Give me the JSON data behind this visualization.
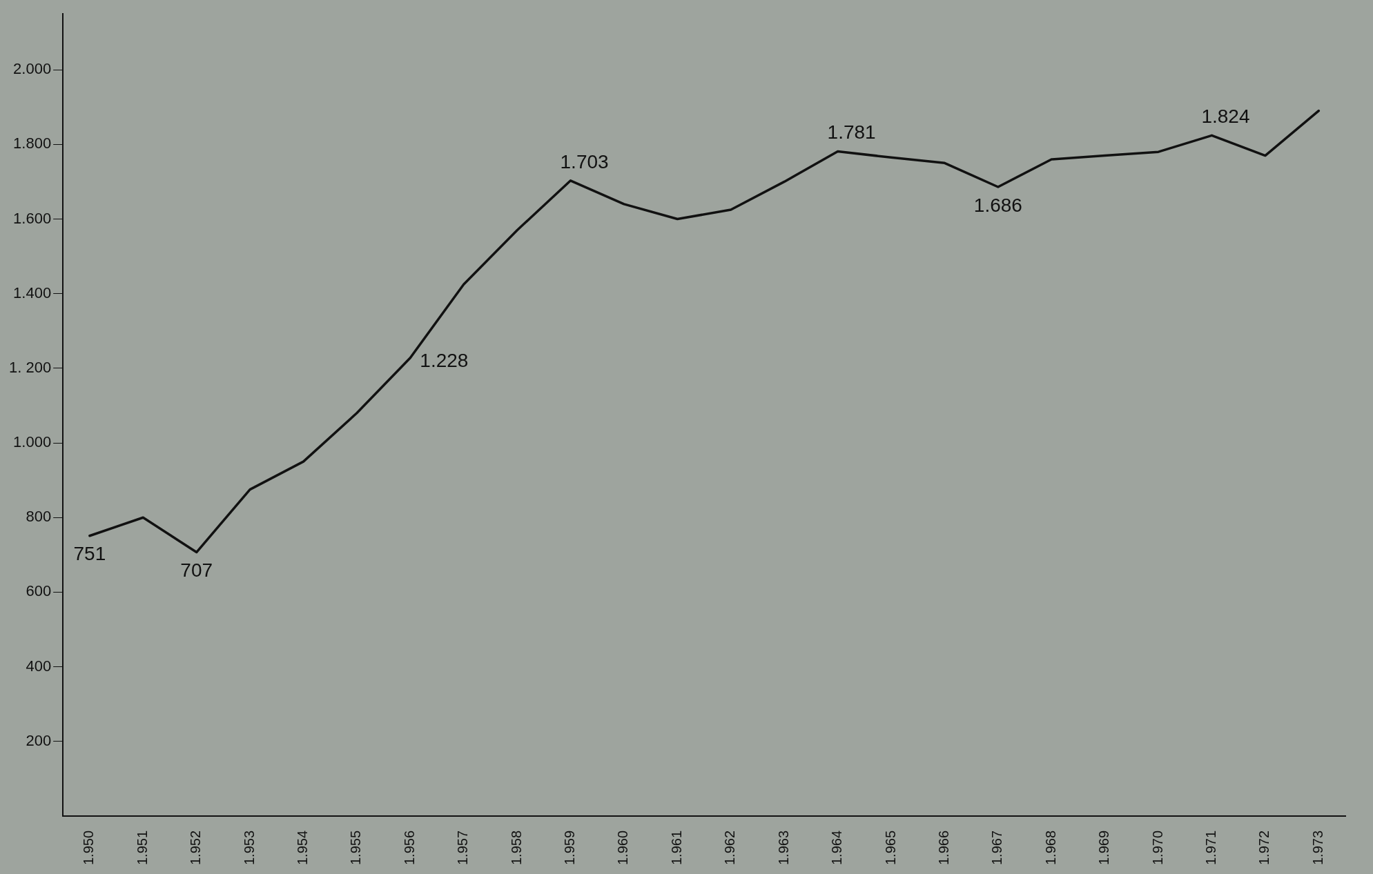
{
  "chart_data": {
    "type": "line",
    "categories": [
      "1.950",
      "1.951",
      "1.952",
      "1.953",
      "1.954",
      "1.955",
      "1.956",
      "1.957",
      "1.958",
      "1.959",
      "1.960",
      "1.961",
      "1.962",
      "1.963",
      "1.964",
      "1.965",
      "1.966",
      "1.967",
      "1.968",
      "1.969",
      "1.970",
      "1.971",
      "1.972",
      "1.973"
    ],
    "values": [
      751,
      800,
      707,
      875,
      950,
      1080,
      1228,
      1425,
      1570,
      1703,
      1640,
      1600,
      1625,
      1700,
      1781,
      1765,
      1750,
      1686,
      1760,
      1770,
      1780,
      1824,
      1770,
      1890
    ],
    "value_labels": [
      "751",
      null,
      "707",
      null,
      null,
      null,
      "1.228",
      null,
      null,
      "1.703",
      null,
      null,
      null,
      null,
      "1.781",
      null,
      null,
      "1.686",
      null,
      null,
      null,
      "1.824",
      null,
      null
    ],
    "color": "#111111",
    "marker": "none",
    "line_style": "solid",
    "grid": false,
    "legend": false,
    "ylim": [
      0,
      2150
    ],
    "yticks": [
      {
        "value": 200,
        "label": "200"
      },
      {
        "value": 400,
        "label": "400"
      },
      {
        "value": 600,
        "label": "600"
      },
      {
        "value": 800,
        "label": "800"
      },
      {
        "value": 1000,
        "label": "1.000"
      },
      {
        "value": 1200,
        "label": "1. 200"
      },
      {
        "value": 1400,
        "label": "1.400"
      },
      {
        "value": 1600,
        "label": "1.600"
      },
      {
        "value": 1800,
        "label": "1.800"
      },
      {
        "value": 2000,
        "label": "2.000"
      }
    ]
  }
}
